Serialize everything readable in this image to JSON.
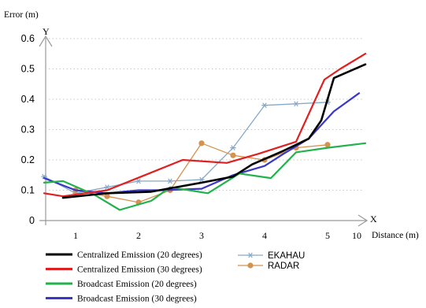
{
  "chart_data": {
    "type": "line",
    "ylabel": "Error (m)",
    "y_axis_letter": "Y",
    "x_axis_letter": "X",
    "xlabel": "Distance (m)",
    "x_end_label": "10",
    "ylim": [
      0,
      0.6
    ],
    "yticks": [
      {
        "value": 0,
        "label": "0"
      },
      {
        "value": 0.1,
        "label": "0.1"
      },
      {
        "value": 0.2,
        "label": "0.2"
      },
      {
        "value": 0.3,
        "label": "0.3"
      },
      {
        "value": 0.4,
        "label": "0.4"
      },
      {
        "value": 0.5,
        "label": "0.5"
      },
      {
        "value": 0.6,
        "label": "0.6"
      }
    ],
    "xlim": [
      0.3,
      6.0
    ],
    "xticks": [
      {
        "value": 1,
        "label": "1"
      },
      {
        "value": 2,
        "label": "2"
      },
      {
        "value": 3,
        "label": "3"
      },
      {
        "value": 4,
        "label": "4"
      },
      {
        "value": 5,
        "label": "5"
      }
    ],
    "grid": "horizontal dotted",
    "legend_position": "bottom",
    "series": [
      {
        "name": "Centralized Emission (20 degrees)",
        "color": "#000000",
        "marker": "none",
        "x": [
          0.8,
          1.5,
          2.2,
          3.0,
          3.5,
          3.8,
          4.3,
          4.7,
          4.9,
          5.1,
          5.6
        ],
        "y": [
          0.075,
          0.09,
          0.095,
          0.125,
          0.145,
          0.185,
          0.23,
          0.27,
          0.33,
          0.47,
          0.515
        ]
      },
      {
        "name": "Centralized Emission (30 degrees)",
        "color": "#e02020",
        "marker": "none",
        "x": [
          0.5,
          0.8,
          1.5,
          2.1,
          2.7,
          3.4,
          3.9,
          4.5,
          4.95,
          5.2,
          5.6
        ],
        "y": [
          0.09,
          0.08,
          0.1,
          0.15,
          0.2,
          0.19,
          0.22,
          0.26,
          0.465,
          0.5,
          0.55
        ]
      },
      {
        "name": "Broadcast Emission (20 degrees)",
        "color": "#22b24c",
        "marker": "none",
        "x": [
          0.5,
          0.8,
          1.3,
          1.7,
          2.2,
          2.5,
          3.1,
          3.6,
          4.1,
          4.5,
          5.0,
          5.6
        ],
        "y": [
          0.125,
          0.13,
          0.085,
          0.035,
          0.065,
          0.11,
          0.09,
          0.155,
          0.14,
          0.225,
          0.24,
          0.255
        ]
      },
      {
        "name": "Broadcast Emission (30 degrees)",
        "color": "#3a36c9",
        "marker": "none",
        "x": [
          0.5,
          1.0,
          1.5,
          2.0,
          2.4,
          3.0,
          3.5,
          4.0,
          4.3,
          4.7,
          5.1,
          5.5
        ],
        "y": [
          0.14,
          0.1,
          0.09,
          0.1,
          0.1,
          0.105,
          0.15,
          0.18,
          0.22,
          0.27,
          0.36,
          0.42
        ]
      },
      {
        "name": "EKAHAU",
        "color": "#86a9c9",
        "marker": "asterisk",
        "x": [
          0.5,
          1.0,
          1.5,
          2.0,
          2.5,
          3.0,
          3.5,
          4.0,
          4.5,
          5.0
        ],
        "y": [
          0.145,
          0.09,
          0.11,
          0.13,
          0.13,
          0.135,
          0.24,
          0.38,
          0.385,
          0.39
        ]
      },
      {
        "name": "RADAR",
        "color": "#d4924f",
        "marker": "circle",
        "x": [
          1.0,
          1.5,
          2.0,
          2.5,
          3.0,
          3.5,
          4.0,
          4.5,
          5.0
        ],
        "y": [
          0.1,
          0.08,
          0.06,
          0.1,
          0.255,
          0.215,
          0.2,
          0.24,
          0.25
        ]
      }
    ]
  }
}
